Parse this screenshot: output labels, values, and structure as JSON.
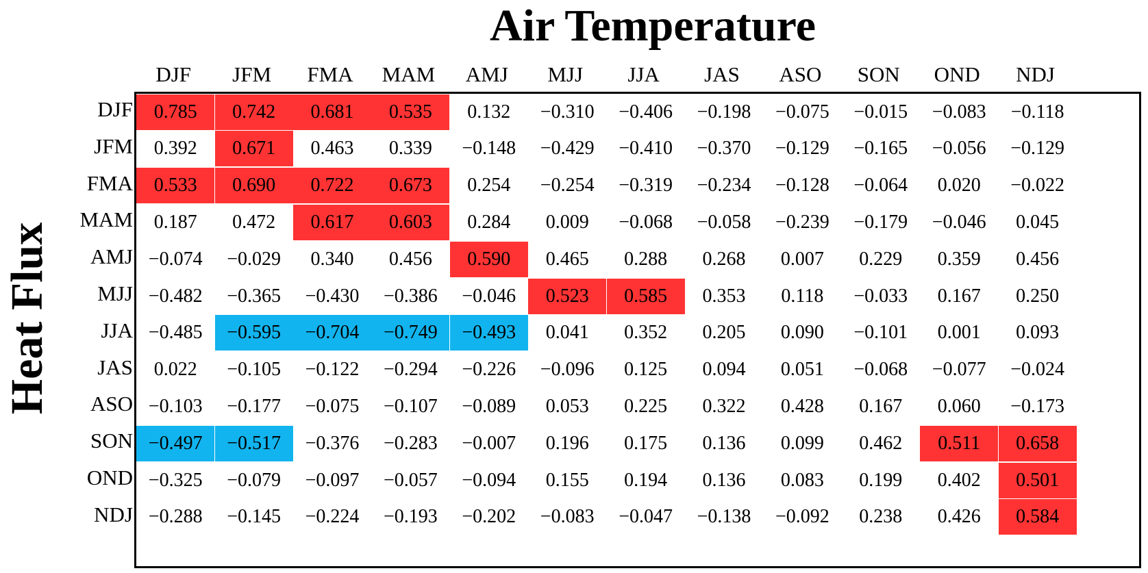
{
  "chart_data": {
    "type": "table",
    "title": "Air Temperature",
    "xlabel": "Air Temperature",
    "ylabel": "Heat Flux",
    "columns": [
      "DJF",
      "JFM",
      "FMA",
      "MAM",
      "AMJ",
      "MJJ",
      "JJA",
      "JAS",
      "ASO",
      "SON",
      "OND",
      "NDJ"
    ],
    "rows": [
      "DJF",
      "JFM",
      "FMA",
      "MAM",
      "AMJ",
      "MJJ",
      "JJA",
      "JAS",
      "ASO",
      "SON",
      "OND",
      "NDJ"
    ],
    "values": [
      [
        "0.785",
        "0.742",
        "0.681",
        "0.535",
        "0.132",
        "−0.310",
        "−0.406",
        "−0.198",
        "−0.075",
        "−0.015",
        "−0.083",
        "−0.118"
      ],
      [
        "0.392",
        "0.671",
        "0.463",
        "0.339",
        "−0.148",
        "−0.429",
        "−0.410",
        "−0.370",
        "−0.129",
        "−0.165",
        "−0.056",
        "−0.129"
      ],
      [
        "0.533",
        "0.690",
        "0.722",
        "0.673",
        "0.254",
        "−0.254",
        "−0.319",
        "−0.234",
        "−0.128",
        "−0.064",
        "0.020",
        "−0.022"
      ],
      [
        "0.187",
        "0.472",
        "0.617",
        "0.603",
        "0.284",
        "0.009",
        "−0.068",
        "−0.058",
        "−0.239",
        "−0.179",
        "−0.046",
        "0.045"
      ],
      [
        "−0.074",
        "−0.029",
        "0.340",
        "0.456",
        "0.590",
        "0.465",
        "0.288",
        "0.268",
        "0.007",
        "0.229",
        "0.359",
        "0.456"
      ],
      [
        "−0.482",
        "−0.365",
        "−0.430",
        "−0.386",
        "−0.046",
        "0.523",
        "0.585",
        "0.353",
        "0.118",
        "−0.033",
        "0.167",
        "0.250"
      ],
      [
        "−0.485",
        "−0.595",
        "−0.704",
        "−0.749",
        "−0.493",
        "0.041",
        "0.352",
        "0.205",
        "0.090",
        "−0.101",
        "0.001",
        "0.093"
      ],
      [
        "0.022",
        "−0.105",
        "−0.122",
        "−0.294",
        "−0.226",
        "−0.096",
        "0.125",
        "0.094",
        "0.051",
        "−0.068",
        "−0.077",
        "−0.024"
      ],
      [
        "−0.103",
        "−0.177",
        "−0.075",
        "−0.107",
        "−0.089",
        "0.053",
        "0.225",
        "0.322",
        "0.428",
        "0.167",
        "0.060",
        "−0.173"
      ],
      [
        "−0.497",
        "−0.517",
        "−0.376",
        "−0.283",
        "−0.007",
        "0.196",
        "0.175",
        "0.136",
        "0.099",
        "0.462",
        "0.511",
        "0.658"
      ],
      [
        "−0.325",
        "−0.079",
        "−0.097",
        "−0.057",
        "−0.094",
        "0.155",
        "0.194",
        "0.136",
        "0.083",
        "0.199",
        "0.402",
        "0.501"
      ],
      [
        "−0.288",
        "−0.145",
        "−0.224",
        "−0.193",
        "−0.202",
        "−0.083",
        "−0.047",
        "−0.138",
        "−0.092",
        "0.238",
        "0.426",
        "0.584"
      ]
    ],
    "highlight": [
      [
        "pos",
        "pos",
        "pos",
        "pos",
        "",
        "",
        "",
        "",
        "",
        "",
        "",
        ""
      ],
      [
        "",
        "pos",
        "",
        "",
        "",
        "",
        "",
        "",
        "",
        "",
        "",
        ""
      ],
      [
        "pos",
        "pos",
        "pos",
        "pos",
        "",
        "",
        "",
        "",
        "",
        "",
        "",
        ""
      ],
      [
        "",
        "",
        "pos",
        "pos",
        "",
        "",
        "",
        "",
        "",
        "",
        "",
        ""
      ],
      [
        "",
        "",
        "",
        "",
        "pos",
        "",
        "",
        "",
        "",
        "",
        "",
        ""
      ],
      [
        "",
        "",
        "",
        "",
        "",
        "pos",
        "pos",
        "",
        "",
        "",
        "",
        ""
      ],
      [
        "",
        "neg",
        "neg",
        "neg",
        "neg",
        "",
        "",
        "",
        "",
        "",
        "",
        ""
      ],
      [
        "",
        "",
        "",
        "",
        "",
        "",
        "",
        "",
        "",
        "",
        "",
        ""
      ],
      [
        "",
        "",
        "",
        "",
        "",
        "",
        "",
        "",
        "",
        "",
        "",
        ""
      ],
      [
        "neg",
        "neg",
        "",
        "",
        "",
        "",
        "",
        "",
        "",
        "",
        "pos",
        "pos"
      ],
      [
        "",
        "",
        "",
        "",
        "",
        "",
        "",
        "",
        "",
        "",
        "",
        "pos"
      ],
      [
        "",
        "",
        "",
        "",
        "",
        "",
        "",
        "",
        "",
        "",
        "",
        "pos"
      ]
    ],
    "colors": {
      "positive": "#ff3333",
      "negative": "#11b4ee"
    }
  }
}
